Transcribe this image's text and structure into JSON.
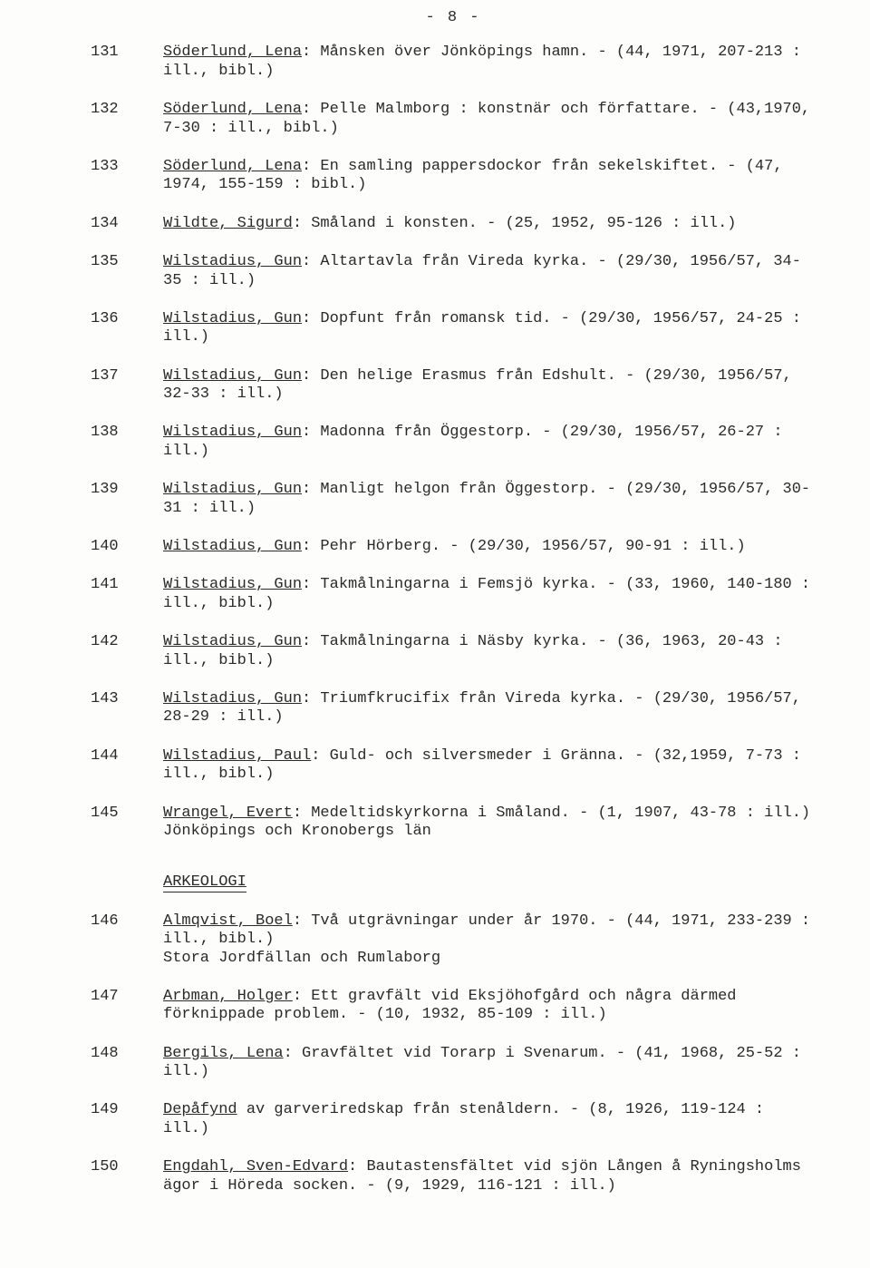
{
  "page_number_display": "- 8 -",
  "section_heading": "ARKEOLOGI",
  "entries": [
    {
      "num": "131",
      "author": "Söderlund, Lena",
      "rest": ": Månsken över Jönköpings hamn. - (44, 1971, 207-213 : ill., bibl.)"
    },
    {
      "num": "132",
      "author": "Söderlund, Lena",
      "rest": ": Pelle Malmborg : konstnär och författare. - (43,1970, 7-30 : ill., bibl.)"
    },
    {
      "num": "133",
      "author": "Söderlund, Lena",
      "rest": ": En samling pappersdockor från sekelskiftet. - (47, 1974, 155-159 : bibl.)"
    },
    {
      "num": "134",
      "author": "Wildte, Sigurd",
      "rest": ": Småland i konsten. - (25, 1952, 95-126 : ill.)"
    },
    {
      "num": "135",
      "author": "Wilstadius, Gun",
      "rest": ": Altartavla från Vireda kyrka. - (29/30, 1956/57, 34-35 : ill.)"
    },
    {
      "num": "136",
      "author": "Wilstadius, Gun",
      "rest": ": Dopfunt från romansk tid. - (29/30, 1956/57, 24-25 : ill.)"
    },
    {
      "num": "137",
      "author": "Wilstadius, Gun",
      "rest": ": Den helige Erasmus från Edshult. - (29/30, 1956/57, 32-33 : ill.)"
    },
    {
      "num": "138",
      "author": "Wilstadius, Gun",
      "rest": ": Madonna från Öggestorp. - (29/30, 1956/57, 26-27 : ill.)"
    },
    {
      "num": "139",
      "author": "Wilstadius, Gun",
      "rest": ": Manligt helgon från Öggestorp. - (29/30, 1956/57, 30-31 : ill.)"
    },
    {
      "num": "140",
      "author": "Wilstadius, Gun",
      "rest": ": Pehr Hörberg. - (29/30, 1956/57, 90-91 : ill.)"
    },
    {
      "num": "141",
      "author": "Wilstadius, Gun",
      "rest": ": Takmålningarna i Femsjö kyrka. - (33, 1960, 140-180 : ill., bibl.)"
    },
    {
      "num": "142",
      "author": "Wilstadius, Gun",
      "rest": ": Takmålningarna i Näsby kyrka. - (36, 1963, 20-43 : ill., bibl.)"
    },
    {
      "num": "143",
      "author": "Wilstadius, Gun",
      "rest": ": Triumfkrucifix från Vireda kyrka. - (29/30, 1956/57, 28-29 : ill.)"
    },
    {
      "num": "144",
      "author": "Wilstadius, Paul",
      "rest": ": Guld- och silversmeder i Gränna. - (32,1959, 7-73 : ill., bibl.)"
    },
    {
      "num": "145",
      "author": "Wrangel, Evert",
      "rest": ": Medeltidskyrkorna i Småland. - (1, 1907, 43-78 : ill.)",
      "note": "Jönköpings och Kronobergs län"
    },
    {
      "num": "146",
      "author": "Almqvist, Boel",
      "rest": ": Två utgrävningar under år 1970. - (44, 1971, 233-239 : ill., bibl.)",
      "note": "Stora Jordfällan och Rumlaborg"
    },
    {
      "num": "147",
      "author": "Arbman, Holger",
      "rest": ": Ett gravfält vid Eksjöhofgård och några därmed förknippade problem. - (10, 1932, 85-109 : ill.)"
    },
    {
      "num": "148",
      "author": "Bergils, Lena",
      "rest": ": Gravfältet vid Torarp i Svenarum. - (41, 1968, 25-52 : ill.)"
    },
    {
      "num": "149",
      "author": "Depåfynd",
      "rest": " av garveriredskap från stenåldern. - (8, 1926, 119-124 : ill.)"
    },
    {
      "num": "150",
      "author": "Engdahl, Sven-Edvard",
      "rest": ": Bautastensfältet vid sjön Lången å Ryningsholms ägor i Höreda socken. - (9, 1929, 116-121 : ill.)"
    }
  ],
  "section_break_after_index": 14
}
